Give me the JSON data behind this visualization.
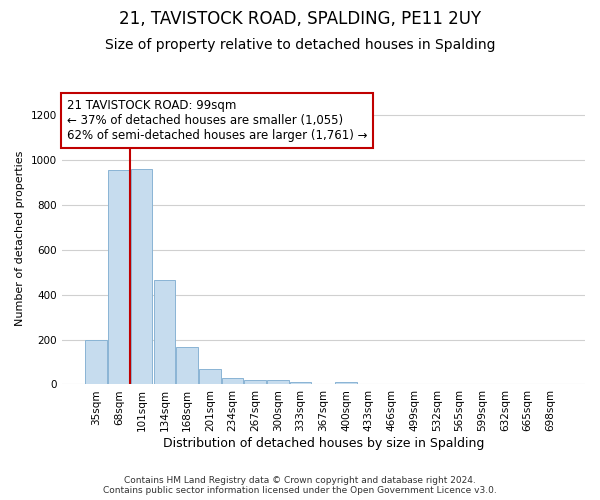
{
  "title": "21, TAVISTOCK ROAD, SPALDING, PE11 2UY",
  "subtitle": "Size of property relative to detached houses in Spalding",
  "xlabel": "Distribution of detached houses by size in Spalding",
  "ylabel": "Number of detached properties",
  "footer_line1": "Contains HM Land Registry data © Crown copyright and database right 2024.",
  "footer_line2": "Contains public sector information licensed under the Open Government Licence v3.0.",
  "categories": [
    "35sqm",
    "68sqm",
    "101sqm",
    "134sqm",
    "168sqm",
    "201sqm",
    "234sqm",
    "267sqm",
    "300sqm",
    "333sqm",
    "367sqm",
    "400sqm",
    "433sqm",
    "466sqm",
    "499sqm",
    "532sqm",
    "565sqm",
    "599sqm",
    "632sqm",
    "665sqm",
    "698sqm"
  ],
  "values": [
    200,
    955,
    960,
    465,
    165,
    70,
    27,
    22,
    20,
    12,
    0,
    12,
    0,
    0,
    0,
    0,
    0,
    0,
    0,
    0,
    0
  ],
  "bar_color": "#c6dcee",
  "bar_edge_color": "#8ab4d4",
  "highlight_bar_index": 2,
  "highlight_color": "#c00000",
  "annotation_text": "21 TAVISTOCK ROAD: 99sqm\n← 37% of detached houses are smaller (1,055)\n62% of semi-detached houses are larger (1,761) →",
  "annotation_box_color": "#ffffff",
  "annotation_box_edge_color": "#c00000",
  "ylim": [
    0,
    1300
  ],
  "yticks": [
    0,
    200,
    400,
    600,
    800,
    1000,
    1200
  ],
  "fig_background_color": "#ffffff",
  "plot_background_color": "#ffffff",
  "title_fontsize": 12,
  "subtitle_fontsize": 10,
  "annotation_fontsize": 8.5,
  "tick_fontsize": 7.5,
  "ylabel_fontsize": 8,
  "xlabel_fontsize": 9
}
